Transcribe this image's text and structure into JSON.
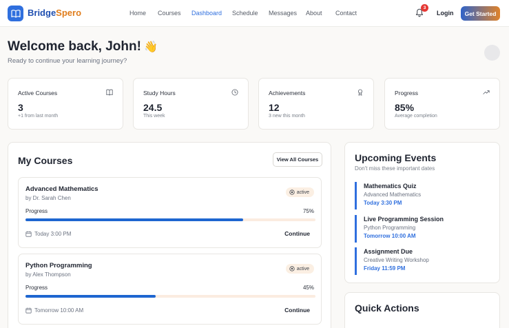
{
  "brand": {
    "part1": "Bridge",
    "part2": "Spero"
  },
  "nav": {
    "links": [
      "Home",
      "Courses",
      "Dashboard",
      "Schedule",
      "Messages",
      "About",
      "Contact"
    ],
    "active": "Dashboard",
    "notification_count": "3",
    "login_label": "Login",
    "cta_label": "Get Started"
  },
  "welcome": {
    "title": "Welcome back, John!",
    "emoji": "👋",
    "subtitle": "Ready to continue your learning journey?"
  },
  "stats": [
    {
      "label": "Active Courses",
      "value": "3",
      "sub": "+1 from last month",
      "icon": "book-icon"
    },
    {
      "label": "Study Hours",
      "value": "24.5",
      "sub": "This week",
      "icon": "clock-icon"
    },
    {
      "label": "Achievements",
      "value": "12",
      "sub": "3 new this month",
      "icon": "award-icon"
    },
    {
      "label": "Progress",
      "value": "85%",
      "sub": "Average completion",
      "icon": "trending-up-icon"
    }
  ],
  "courses": {
    "title": "My Courses",
    "view_all_label": "View All Courses",
    "items": [
      {
        "title": "Advanced Mathematics",
        "instructor": "by Dr. Sarah Chen",
        "status": "active",
        "progress_label": "Progress",
        "progress_text": "75%",
        "progress": 0.75,
        "time": "Today 3:00 PM",
        "action": "Continue"
      },
      {
        "title": "Python Programming",
        "instructor": "by Alex Thompson",
        "status": "active",
        "progress_label": "Progress",
        "progress_text": "45%",
        "progress": 0.45,
        "time": "Tomorrow 10:00 AM",
        "action": "Continue"
      }
    ]
  },
  "events": {
    "title": "Upcoming Events",
    "subtitle": "Don't miss these important dates",
    "items": [
      {
        "title": "Mathematics Quiz",
        "course": "Advanced Mathematics",
        "when": "Today 3:30 PM"
      },
      {
        "title": "Live Programming Session",
        "course": "Python Programming",
        "when": "Tomorrow 10:00 AM"
      },
      {
        "title": "Assignment Due",
        "course": "Creative Writing Workshop",
        "when": "Friday 11:59 PM"
      }
    ]
  },
  "quick_actions": {
    "title": "Quick Actions"
  },
  "colors": {
    "accent": "#2f6fde",
    "brand_orange": "#e07d1c",
    "progress_fill": "#1e66d0"
  }
}
